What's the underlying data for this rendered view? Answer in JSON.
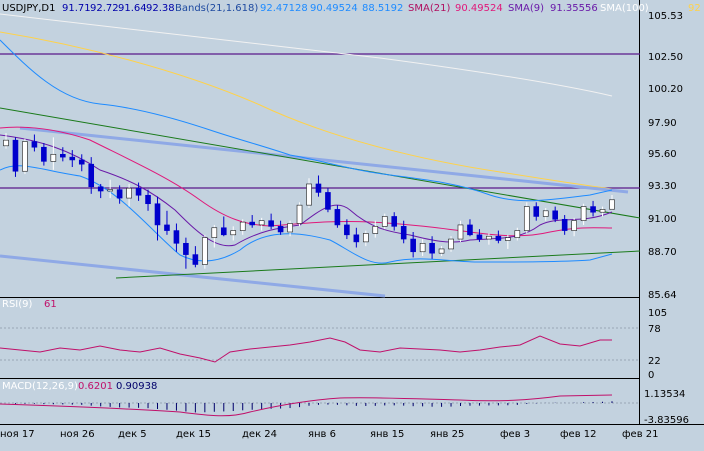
{
  "header": {
    "symbol": "USDJPY,D1",
    "open": "91.71",
    "high": "92.72",
    "low": "91.64",
    "close": "92.38",
    "bands_label": "Bands(21,1.618)",
    "bands_upper": "92.47128",
    "bands_mid": "90.49524",
    "bands_lower": "88.5192",
    "sma21_label": "SMA(21)",
    "sma21_value": "90.49524",
    "sma9_label": "SMA(9)",
    "sma9_value": "91.35556",
    "sma100_label": "SMA(100)",
    "sma100_value": "92"
  },
  "price_axis": [
    "105.53",
    "102.50",
    "100.20",
    "97.90",
    "95.60",
    "93.30",
    "91.00",
    "88.70",
    "85.64"
  ],
  "rsi": {
    "label": "RSI(9)",
    "value": "61",
    "axis": [
      "105",
      "78",
      "22",
      "0"
    ]
  },
  "macd": {
    "label": "MACD(12,26,9)",
    "value1": "0.6201",
    "value2": "0.90938",
    "axis": [
      "1.13534",
      "-3.83596"
    ]
  },
  "date_axis": [
    "ноя 17",
    "ноя 26",
    "дек 5",
    "дек 15",
    "дек 24",
    "янв 6",
    "янв 15",
    "янв 25",
    "фев 3",
    "фев 12",
    "фев 21"
  ],
  "colors": {
    "background": "#c3d2df",
    "bull": "#ffffff",
    "bear": "#0000cc",
    "band": "#1e8bff",
    "sma21": "#e0187a",
    "sma100": "#ffd24a",
    "sma200": "#f2f2f2",
    "trend": "#1a7a1a",
    "channel": "#8fa9e6",
    "level": "#5a1a8a",
    "rsi": "#c0106a"
  },
  "chart_data": {
    "type": "candlestick",
    "symbol": "USDJPY",
    "timeframe": "D1",
    "ylim": [
      85.64,
      105.53
    ],
    "hlines": [
      102.8,
      93.22
    ],
    "candles": [
      [
        96.2,
        97.1,
        96.0,
        96.6
      ],
      [
        96.6,
        96.8,
        94.0,
        94.4
      ],
      [
        94.4,
        96.7,
        94.2,
        96.5
      ],
      [
        96.5,
        97.0,
        95.8,
        96.1
      ],
      [
        96.1,
        96.4,
        94.8,
        95.1
      ],
      [
        95.1,
        96.8,
        94.5,
        95.6
      ],
      [
        95.6,
        96.1,
        95.1,
        95.4
      ],
      [
        95.4,
        95.9,
        94.7,
        95.2
      ],
      [
        95.2,
        95.6,
        94.4,
        94.9
      ],
      [
        94.9,
        95.4,
        92.8,
        93.3
      ],
      [
        93.3,
        93.5,
        92.5,
        93.0
      ],
      [
        93.0,
        93.8,
        92.5,
        93.1
      ],
      [
        93.1,
        93.4,
        92.1,
        92.5
      ],
      [
        92.5,
        93.5,
        91.9,
        93.2
      ],
      [
        93.2,
        93.6,
        92.3,
        92.7
      ],
      [
        92.7,
        93.1,
        91.6,
        92.1
      ],
      [
        92.1,
        92.6,
        89.5,
        90.6
      ],
      [
        90.6,
        91.6,
        89.9,
        90.2
      ],
      [
        90.2,
        90.7,
        88.7,
        89.3
      ],
      [
        89.3,
        89.7,
        87.5,
        88.5
      ],
      [
        88.5,
        89.1,
        87.6,
        87.8
      ],
      [
        87.8,
        89.9,
        87.5,
        89.7
      ],
      [
        89.7,
        90.6,
        89.0,
        90.4
      ],
      [
        90.4,
        91.2,
        89.8,
        89.9
      ],
      [
        89.9,
        90.5,
        89.5,
        90.2
      ],
      [
        90.2,
        91.0,
        89.9,
        90.8
      ],
      [
        90.8,
        91.3,
        90.4,
        90.6
      ],
      [
        90.6,
        91.1,
        90.2,
        90.9
      ],
      [
        90.9,
        91.4,
        90.3,
        90.5
      ],
      [
        90.5,
        90.9,
        89.9,
        90.1
      ],
      [
        90.1,
        90.9,
        89.8,
        90.7
      ],
      [
        90.7,
        92.2,
        90.5,
        92.0
      ],
      [
        92.0,
        93.9,
        91.8,
        93.5
      ],
      [
        93.5,
        94.1,
        92.6,
        92.9
      ],
      [
        92.9,
        93.2,
        91.5,
        91.7
      ],
      [
        91.7,
        92.0,
        90.4,
        90.6
      ],
      [
        90.6,
        91.0,
        89.6,
        89.9
      ],
      [
        89.9,
        90.4,
        89.0,
        89.4
      ],
      [
        89.4,
        90.2,
        89.1,
        90.0
      ],
      [
        90.0,
        90.9,
        89.7,
        90.5
      ],
      [
        90.5,
        91.4,
        90.3,
        91.2
      ],
      [
        91.2,
        91.5,
        90.2,
        90.5
      ],
      [
        90.5,
        90.9,
        89.3,
        89.6
      ],
      [
        89.6,
        90.1,
        88.3,
        88.7
      ],
      [
        88.7,
        89.6,
        88.4,
        89.3
      ],
      [
        89.3,
        89.8,
        88.2,
        88.6
      ],
      [
        88.6,
        89.1,
        88.4,
        88.9
      ],
      [
        88.9,
        89.8,
        88.7,
        89.6
      ],
      [
        89.6,
        90.9,
        89.4,
        90.6
      ],
      [
        90.6,
        91.0,
        89.8,
        89.9
      ],
      [
        89.9,
        90.3,
        89.4,
        89.6
      ],
      [
        89.6,
        90.0,
        89.2,
        89.8
      ],
      [
        89.8,
        90.2,
        89.3,
        89.5
      ],
      [
        89.5,
        89.9,
        88.9,
        89.7
      ],
      [
        89.7,
        90.4,
        89.5,
        90.2
      ],
      [
        90.2,
        92.2,
        90.0,
        91.9
      ],
      [
        91.9,
        92.2,
        90.9,
        91.2
      ],
      [
        91.2,
        91.8,
        90.9,
        91.6
      ],
      [
        91.6,
        91.9,
        90.8,
        91.0
      ],
      [
        91.0,
        91.3,
        89.9,
        90.2
      ],
      [
        90.2,
        91.1,
        89.8,
        90.9
      ],
      [
        90.9,
        92.1,
        90.6,
        91.9
      ],
      [
        91.9,
        92.3,
        91.2,
        91.5
      ],
      [
        91.5,
        91.9,
        91.2,
        91.7
      ],
      [
        91.71,
        92.72,
        91.64,
        92.38
      ]
    ]
  }
}
